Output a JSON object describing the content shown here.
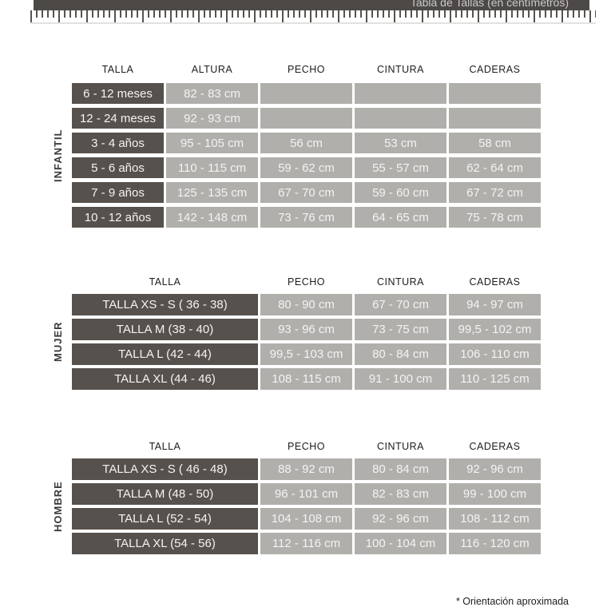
{
  "header": {
    "title": "Tabla de Tallas (en centímetros)"
  },
  "footer": {
    "note": "* Orientación aproximada"
  },
  "colors": {
    "title_bar": "#4c4947",
    "dark_cell": "#56514d",
    "light_cell": "#b1afac",
    "cell_text": "#f4f3f1"
  },
  "icons": {
    "ruler": "ruler-ticks-graphic"
  },
  "tables": [
    {
      "group": "INFANTIL",
      "columns": [
        "TALLA",
        "ALTURA",
        "PECHO",
        "CINTURA",
        "CADERAS"
      ],
      "rows": [
        [
          "6 - 12 meses",
          "82 - 83 cm",
          "",
          "",
          ""
        ],
        [
          "12 - 24 meses",
          "92 - 93 cm",
          "",
          "",
          ""
        ],
        [
          "3 - 4 años",
          "95 - 105 cm",
          "56 cm",
          "53 cm",
          "58 cm"
        ],
        [
          "5 - 6 años",
          "110 - 115 cm",
          "59 - 62 cm",
          "55 - 57 cm",
          "62 - 64 cm"
        ],
        [
          "7 - 9 años",
          "125 - 135 cm",
          "67 - 70 cm",
          "59 - 60 cm",
          "67 - 72 cm"
        ],
        [
          "10 - 12 años",
          "142 - 148 cm",
          "73 - 76 cm",
          "64 - 65 cm",
          "75 - 78 cm"
        ]
      ]
    },
    {
      "group": "MUJER",
      "columns": [
        "TALLA",
        "PECHO",
        "CINTURA",
        "CADERAS"
      ],
      "rows": [
        [
          "TALLA XS - S ( 36 - 38)",
          "80 - 90 cm",
          "67 - 70 cm",
          "94 - 97 cm"
        ],
        [
          "TALLA M (38 - 40)",
          "93 - 96 cm",
          "73 - 75 cm",
          "99,5 - 102 cm"
        ],
        [
          "TALLA L (42 - 44)",
          "99,5 - 103 cm",
          "80 - 84 cm",
          "106 - 110 cm"
        ],
        [
          "TALLA XL (44 - 46)",
          "108 - 115 cm",
          "91 - 100 cm",
          "110 - 125 cm"
        ]
      ]
    },
    {
      "group": "HOMBRE",
      "columns": [
        "TALLA",
        "PECHO",
        "CINTURA",
        "CADERAS"
      ],
      "rows": [
        [
          "TALLA XS - S ( 46 - 48)",
          "88 - 92 cm",
          "80 - 84 cm",
          "92 - 96 cm"
        ],
        [
          "TALLA M (48 - 50)",
          "96 - 101 cm",
          "82 - 83 cm",
          "99 - 100 cm"
        ],
        [
          "TALLA L (52 - 54)",
          "104 - 108 cm",
          "92 - 96 cm",
          "108 - 112 cm"
        ],
        [
          "TALLA XL (54 - 56)",
          "112 - 116 cm",
          "100 - 104 cm",
          "116 - 120 cm"
        ]
      ]
    }
  ]
}
